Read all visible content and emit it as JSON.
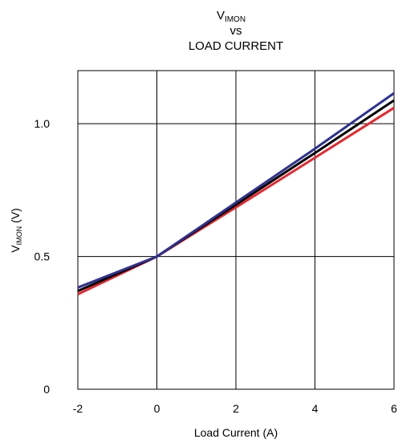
{
  "chart_data": {
    "type": "line",
    "title": {
      "line1_main": "V",
      "line1_sub": "IMON",
      "line2": "vs",
      "line3": "LOAD CURRENT"
    },
    "xlabel": "Load Current (A)",
    "ylabel": {
      "main": "V",
      "sub": "IMON",
      "suffix": " (V)"
    },
    "xlim": [
      -2,
      6
    ],
    "ylim": [
      0,
      1.2
    ],
    "x_ticks": [
      -2,
      0,
      2,
      4,
      6
    ],
    "x_tick_labels": [
      "-2",
      "0",
      "2",
      "4",
      "6"
    ],
    "y_ticks": [
      0,
      0.5,
      1.0
    ],
    "y_tick_labels": [
      "0",
      "0.5",
      "1.0"
    ],
    "grid": true,
    "series": [
      {
        "color": "#e8262e",
        "x": [
          -2,
          0,
          2,
          4,
          6
        ],
        "y": [
          0.358,
          0.5,
          0.685,
          0.872,
          1.06
        ]
      },
      {
        "color": "#000000",
        "x": [
          -2,
          0,
          2,
          4,
          6
        ],
        "y": [
          0.37,
          0.5,
          0.695,
          0.89,
          1.088
        ]
      },
      {
        "color": "#2e3192",
        "x": [
          -2,
          0,
          2,
          4,
          6
        ],
        "y": [
          0.383,
          0.5,
          0.703,
          0.906,
          1.115
        ]
      }
    ]
  }
}
